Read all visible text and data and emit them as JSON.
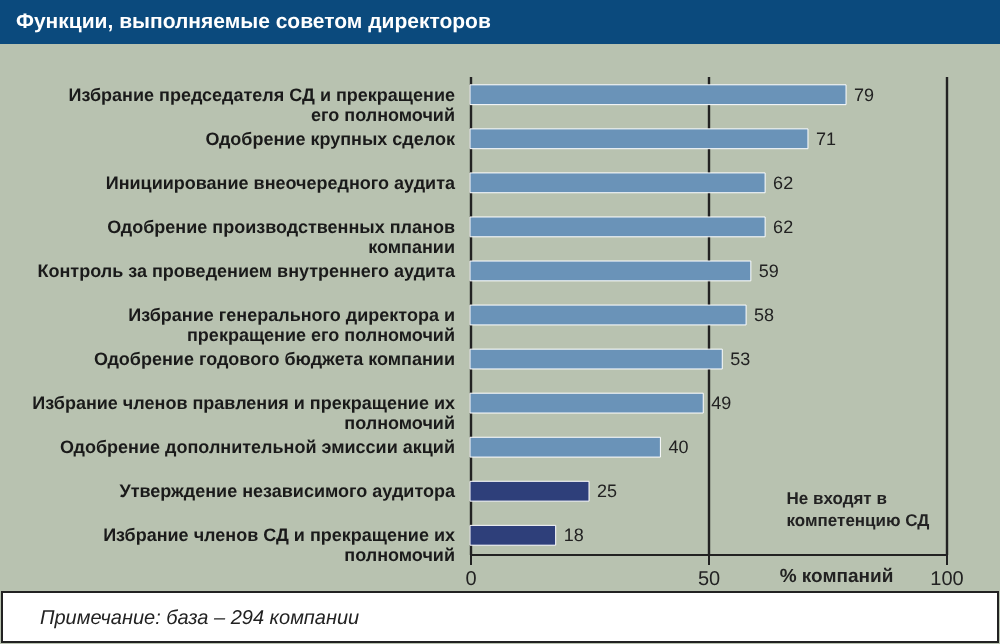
{
  "chart_data": {
    "type": "bar",
    "orientation": "horizontal",
    "title": "Функции, выполняемые советом директоров",
    "categories": [
      "Избрание председателя СД и прекращение\nего полномочий",
      "Одобрение крупных сделок",
      "Инициирование внеочередного аудита",
      "Одобрение производственных планов\nкомпании",
      "Контроль за проведением внутреннего аудита",
      "Избрание генерального директора и\nпрекращение его полномочий",
      "Одобрение годового бюджета компании",
      "Избрание членов правления и прекращение их\nполномочий",
      "Одобрение дополнительной эмиссии акций",
      "Утверждение независимого аудитора",
      "Избрание членов СД и прекращение их\nполномочий"
    ],
    "values": [
      79,
      71,
      62,
      62,
      59,
      58,
      53,
      49,
      40,
      25,
      18
    ],
    "colors": [
      "#6a93b8",
      "#6a93b8",
      "#6a93b8",
      "#6a93b8",
      "#6a93b8",
      "#6a93b8",
      "#6a93b8",
      "#6a93b8",
      "#6a93b8",
      "#2e3f7a",
      "#2e3f7a"
    ],
    "xlim": [
      0,
      100
    ],
    "xticks": [
      0,
      50,
      100
    ],
    "xlabel": "% компаний",
    "grid": "x",
    "data_labels": true,
    "annotations": [
      "Не входят в компетенцию СД",
      "Примечание: база – 294 компании"
    ]
  }
}
